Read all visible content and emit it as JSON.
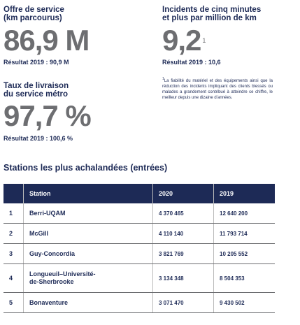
{
  "stats": [
    {
      "label": [
        "Offre de service",
        "(km parcourus)"
      ],
      "value": "86,9 M",
      "result": "Résultat 2019 : 90,9 M"
    },
    {
      "label": [
        "Incidents de cinq minutes",
        "et plus par million de km"
      ],
      "value": "9,2",
      "note_ref": "1",
      "result": "Résultat 2019 : 10,6"
    },
    {
      "label": [
        "Taux de livraison",
        "du service métro"
      ],
      "value": "97,7 %",
      "result": "Résultat 2019 : 100,6 %"
    }
  ],
  "footnote": {
    "ref": "1",
    "text": "La fiabilité du matériel et des équipements ainsi que la réduction des incidents impliquant des clients blessés ou malades a grandement contribué à atteindre ce chiffre, le meilleur depuis une dizaine d’années."
  },
  "table": {
    "title": "Stations les plus achalandées (entrées)",
    "headers": [
      "Station",
      "2020",
      "2019"
    ],
    "rows": [
      [
        "1",
        "Berri-UQAM",
        "4 370 465",
        "12 640 200"
      ],
      [
        "2",
        "McGill",
        "4 110 140",
        "11 793 714"
      ],
      [
        "3",
        "Guy-Concordia",
        "3 821 769",
        "10 205 552"
      ],
      [
        "4",
        "Longueuil–Université-\nde-Sherbrooke",
        "3 134 348",
        "8 504 353"
      ],
      [
        "5",
        "Bonaventure",
        "3 071 470",
        "9 430 502"
      ]
    ]
  }
}
